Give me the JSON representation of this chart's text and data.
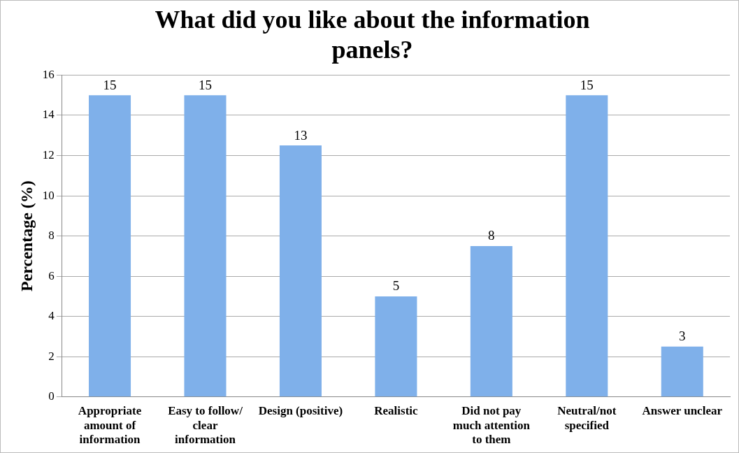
{
  "chart_data": {
    "type": "bar",
    "title": "What did you like about the information panels?",
    "ylabel": "Percentage (%)",
    "categories": [
      "Appropriate amount of information",
      "Easy to follow/ clear information",
      "Design (positive)",
      "Realistic",
      "Did not pay much attention to them",
      "Neutral/not specified",
      "Answer unclear"
    ],
    "values": [
      15,
      15,
      12.5,
      5,
      7.5,
      15,
      2.5
    ],
    "value_labels": [
      "15",
      "15",
      "13",
      "5",
      "8",
      "15",
      "3"
    ],
    "color": "#7fb0ea",
    "ylim": [
      0,
      16
    ],
    "yticks": [
      0,
      2,
      4,
      6,
      8,
      10,
      12,
      14,
      16
    ],
    "grid": "y",
    "legend": false
  }
}
